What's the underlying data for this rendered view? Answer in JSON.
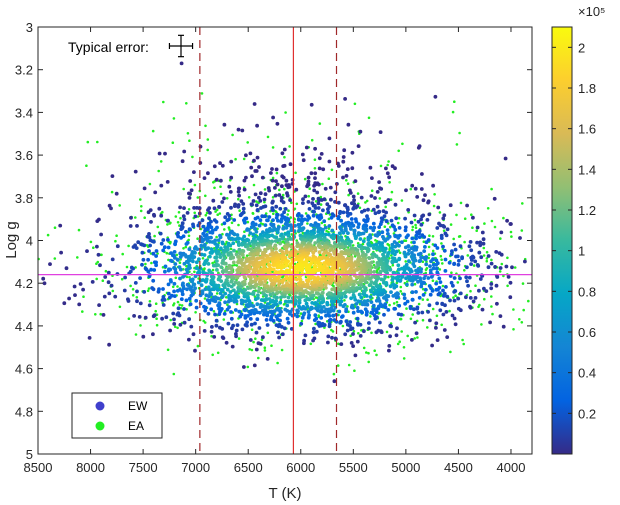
{
  "chart_data": {
    "type": "scatter",
    "xlabel": "T (K)",
    "ylabel": "Log g",
    "xlim": [
      8500,
      3800
    ],
    "ylim": [
      5,
      3
    ],
    "x_reversed": true,
    "y_reversed": true,
    "x_ticks": [
      8500,
      8000,
      7500,
      7000,
      6500,
      6000,
      5500,
      5000,
      4500,
      4000
    ],
    "y_ticks": [
      3,
      3.2,
      3.4,
      3.6,
      3.8,
      4,
      4.2,
      4.4,
      4.6,
      4.8,
      5
    ],
    "grid": false,
    "legend_position": "bottom-left",
    "series": [
      {
        "name": "EW",
        "color": "#3f3fcc",
        "marker": "dot",
        "values": []
      },
      {
        "name": "EA",
        "color": "#22ee22",
        "marker": "dot",
        "values": []
      }
    ],
    "density_colorbar": {
      "label_exponent": "×10⁵",
      "ticks": [
        0.2,
        0.4,
        0.6,
        0.8,
        1,
        1.2,
        1.4,
        1.6,
        1.8,
        2
      ],
      "range": [
        0,
        2.1
      ],
      "colormap": [
        "#352a87",
        "#0363e1",
        "#1485d4",
        "#06a7c6",
        "#38b99e",
        "#92bf73",
        "#d9ba56",
        "#fcce2e",
        "#f9fb0e"
      ]
    },
    "reference_lines": [
      {
        "orientation": "vertical",
        "value": 6070,
        "style": "solid",
        "color": "#e03030"
      },
      {
        "orientation": "vertical",
        "value": 6960,
        "style": "dashed",
        "color": "#a0282a"
      },
      {
        "orientation": "vertical",
        "value": 5660,
        "style": "dashed",
        "color": "#a0282a"
      },
      {
        "orientation": "horizontal",
        "value": 4.16,
        "style": "solid",
        "color": "#e040e0"
      }
    ],
    "annotation": {
      "text": "Typical error:",
      "error_bar_x": 110,
      "error_bar_y": 0.05
    },
    "density_center": {
      "x": 6000,
      "y": 4.13
    }
  }
}
